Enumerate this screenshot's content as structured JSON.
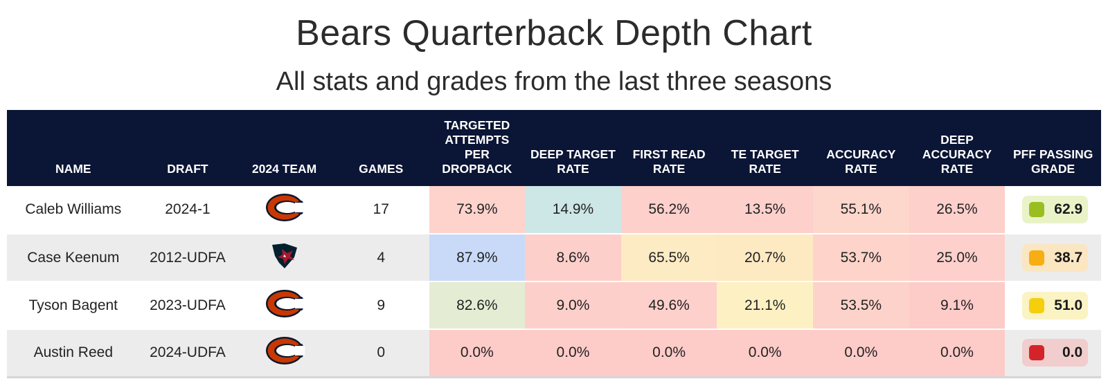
{
  "header": {
    "title": "Bears Quarterback Depth Chart",
    "subtitle": "All stats and grades from the last three seasons"
  },
  "columns": {
    "name": "NAME",
    "draft": "DRAFT",
    "team": "2024 TEAM",
    "games": "GAMES",
    "targeted": "TARGETED ATTEMPTS PER DROPBACK",
    "deep_target": "DEEP TARGET RATE",
    "first_read": "FIRST READ RATE",
    "te_target": "TE TARGET RATE",
    "accuracy": "ACCURACY RATE",
    "deep_accuracy": "DEEP ACCURACY RATE",
    "pff_grade": "PFF PASSING GRADE"
  },
  "rows": [
    {
      "name": "Caleb Williams",
      "draft": "2024-1",
      "team_icon": "bears-logo-icon",
      "games": "17",
      "targeted": "73.9%",
      "deep_target": "14.9%",
      "first_read": "56.2%",
      "te_target": "13.5%",
      "accuracy": "55.1%",
      "deep_accuracy": "26.5%",
      "grade": "62.9",
      "colors": {
        "targeted": "#fdd3cc",
        "deep_target": "#cde6e6",
        "first_read": "#fdd0cb",
        "te_target": "#fdd0cb",
        "accuracy": "#fdd6cc",
        "deep_accuracy": "#fdd0cb",
        "grade_bg": "#eaf3c8",
        "grade_dot": "#9abe1f"
      }
    },
    {
      "name": "Case Keenum",
      "draft": "2012-UDFA",
      "team_icon": "texans-logo-icon",
      "games": "4",
      "targeted": "87.9%",
      "deep_target": "8.6%",
      "first_read": "65.5%",
      "te_target": "20.7%",
      "accuracy": "53.7%",
      "deep_accuracy": "25.0%",
      "grade": "38.7",
      "colors": {
        "targeted": "#c9daf8",
        "deep_target": "#fdcfca",
        "first_read": "#fdebc4",
        "te_target": "#fde9c2",
        "accuracy": "#fdd3ca",
        "deep_accuracy": "#fdd0cb",
        "grade_bg": "#fbe6c2",
        "grade_dot": "#f6ae12"
      }
    },
    {
      "name": "Tyson Bagent",
      "draft": "2023-UDFA",
      "team_icon": "bears-logo-icon",
      "games": "9",
      "targeted": "82.6%",
      "deep_target": "9.0%",
      "first_read": "49.6%",
      "te_target": "21.1%",
      "accuracy": "53.5%",
      "deep_accuracy": "9.1%",
      "grade": "51.0",
      "colors": {
        "targeted": "#e4ecd4",
        "deep_target": "#fdcfca",
        "first_read": "#fdd0cb",
        "te_target": "#fdf1c4",
        "accuracy": "#fdd2ca",
        "deep_accuracy": "#fdcbc8",
        "grade_bg": "#fbf3c4",
        "grade_dot": "#f5cf0c"
      }
    },
    {
      "name": "Austin Reed",
      "draft": "2024-UDFA",
      "team_icon": "bears-logo-icon",
      "games": "0",
      "targeted": "0.0%",
      "deep_target": "0.0%",
      "first_read": "0.0%",
      "te_target": "0.0%",
      "accuracy": "0.0%",
      "deep_accuracy": "0.0%",
      "grade": "0.0",
      "colors": {
        "targeted": "#fdcbc8",
        "deep_target": "#fdcbc8",
        "first_read": "#fdcbc8",
        "te_target": "#fdcbc8",
        "accuracy": "#fdcbc8",
        "deep_accuracy": "#fdcbc8",
        "grade_bg": "#f1cdcd",
        "grade_dot": "#d3242a"
      }
    }
  ],
  "theme": {
    "header_bg": "#0b1535",
    "bears_orange": "#c83803",
    "bears_navy": "#0b162a",
    "texans_navy": "#03202f",
    "texans_red": "#a71930"
  }
}
